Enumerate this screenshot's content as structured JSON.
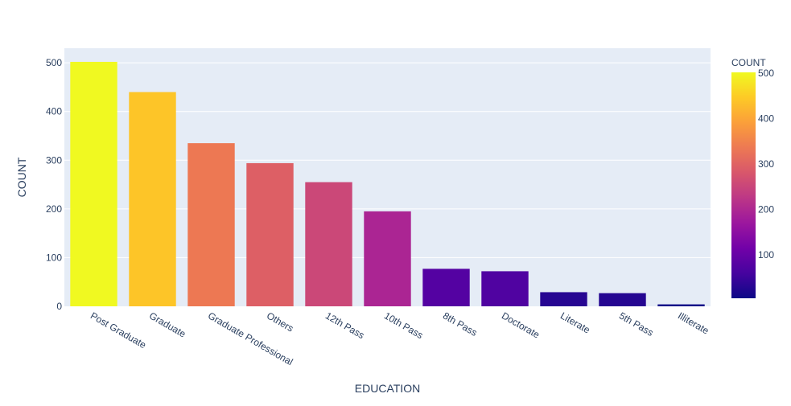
{
  "chart_data": {
    "type": "bar",
    "xlabel": "EDUCATION",
    "ylabel": "COUNT",
    "categories": [
      "Post Graduate",
      "Graduate",
      "Graduate Professional",
      "Others",
      "12th Pass",
      "10th Pass",
      "8th Pass",
      "Doctorate",
      "Literate",
      "5th Pass",
      "Illiterate"
    ],
    "values": [
      502,
      440,
      335,
      294,
      255,
      195,
      77,
      72,
      29,
      27,
      4
    ],
    "ylim": [
      0,
      530
    ],
    "yticks": [
      0,
      100,
      200,
      300,
      400,
      500
    ],
    "grid": true,
    "colorbar": {
      "title": "COUNT",
      "range": [
        4,
        502
      ],
      "ticks": [
        100,
        200,
        300,
        400,
        500
      ],
      "colorscale": [
        "#0d0887",
        "#46039f",
        "#7201a8",
        "#9c179e",
        "#bd3786",
        "#d8576b",
        "#ed7953",
        "#fb9f3a",
        "#fdca26",
        "#f0f921"
      ]
    },
    "plot_bgcolor": "#e5ecf6"
  }
}
